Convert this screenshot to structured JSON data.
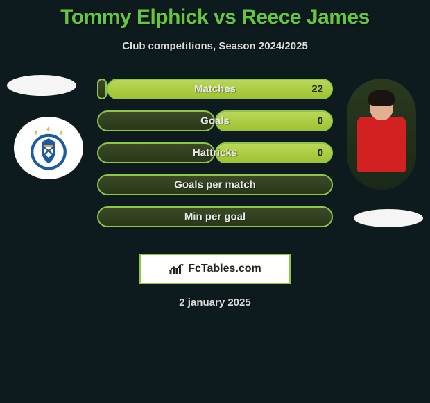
{
  "title": "Tommy Elphick vs Reece James",
  "subtitle": "Club competitions, Season 2024/2025",
  "date": "2 january 2025",
  "logo_text": "FcTables.com",
  "colors": {
    "title": "#64c73f",
    "bar_border": "#8fc64a",
    "bar_dark_from": "#3a4a28",
    "bar_dark_to": "#2a3818",
    "bar_light_from": "#b8d858",
    "bar_light_to": "#9fc333",
    "background": "#0d1a1e"
  },
  "stats": [
    {
      "label": "Matches",
      "left_pct": 4,
      "right_pct": 96,
      "right_value": "22"
    },
    {
      "label": "Goals",
      "left_pct": 50,
      "right_pct": 50,
      "right_value": "0"
    },
    {
      "label": "Hattricks",
      "left_pct": 50,
      "right_pct": 50,
      "right_value": "0"
    },
    {
      "label": "Goals per match",
      "left_pct": 100,
      "right_pct": 0,
      "right_value": ""
    },
    {
      "label": "Min per goal",
      "left_pct": 100,
      "right_pct": 0,
      "right_value": ""
    }
  ]
}
